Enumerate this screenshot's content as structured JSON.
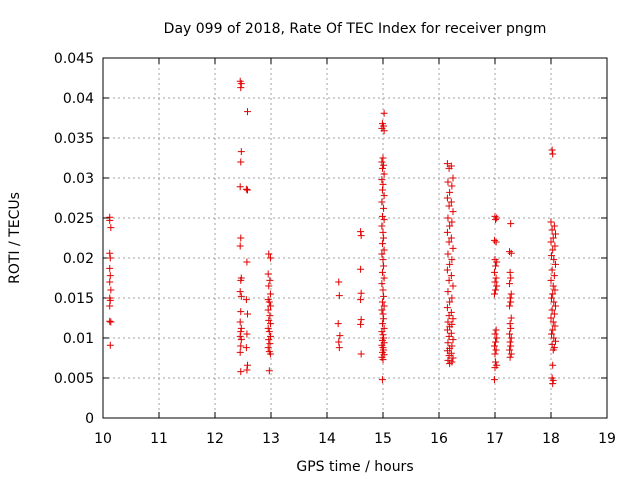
{
  "chart_data": {
    "type": "scatter",
    "title": "Day 099 of 2018, Rate Of TEC Index for receiver pngm",
    "xlabel": "GPS time / hours",
    "ylabel": "ROTI / TECUs",
    "xlim": [
      10,
      19
    ],
    "ylim": [
      0,
      0.045
    ],
    "grid": true,
    "legend": "none",
    "marker": "+",
    "color": "#e00000",
    "xticks": [
      10,
      11,
      12,
      13,
      14,
      15,
      16,
      17,
      18,
      19
    ],
    "yticks": [
      0,
      0.005,
      0.01,
      0.015,
      0.02,
      0.025,
      0.03,
      0.035,
      0.04,
      0.045
    ],
    "xtick_labels": [
      "10",
      "11",
      "12",
      "13",
      "14",
      "15",
      "16",
      "17",
      "18",
      "19"
    ],
    "ytick_labels": [
      "0",
      "0.005",
      "0.01",
      "0.015",
      "0.02",
      "0.025",
      "0.03",
      "0.035",
      "0.04",
      "0.045"
    ],
    "series": [
      {
        "name": "ROTI",
        "points": [
          [
            10.12,
            0.0251
          ],
          [
            10.12,
            0.0247
          ],
          [
            10.14,
            0.0238
          ],
          [
            10.12,
            0.0206
          ],
          [
            10.13,
            0.02
          ],
          [
            10.12,
            0.0187
          ],
          [
            10.13,
            0.0178
          ],
          [
            10.12,
            0.017
          ],
          [
            10.14,
            0.016
          ],
          [
            10.12,
            0.015
          ],
          [
            10.13,
            0.0147
          ],
          [
            10.12,
            0.014
          ],
          [
            10.12,
            0.0121
          ],
          [
            10.14,
            0.012
          ],
          [
            10.13,
            0.0091
          ],
          [
            12.45,
            0.0421
          ],
          [
            12.47,
            0.0418
          ],
          [
            12.46,
            0.0413
          ],
          [
            12.58,
            0.0383
          ],
          [
            12.47,
            0.0333
          ],
          [
            12.46,
            0.032
          ],
          [
            12.45,
            0.0289
          ],
          [
            12.56,
            0.0286
          ],
          [
            12.58,
            0.0285
          ],
          [
            12.46,
            0.0225
          ],
          [
            12.45,
            0.0215
          ],
          [
            12.57,
            0.0195
          ],
          [
            12.47,
            0.0175
          ],
          [
            12.46,
            0.0172
          ],
          [
            12.45,
            0.0158
          ],
          [
            12.47,
            0.0152
          ],
          [
            12.56,
            0.0148
          ],
          [
            12.46,
            0.0133
          ],
          [
            12.58,
            0.013
          ],
          [
            12.45,
            0.012
          ],
          [
            12.47,
            0.0112
          ],
          [
            12.46,
            0.0108
          ],
          [
            12.57,
            0.0105
          ],
          [
            12.45,
            0.0102
          ],
          [
            12.47,
            0.0098
          ],
          [
            12.46,
            0.009
          ],
          [
            12.56,
            0.0088
          ],
          [
            12.45,
            0.0082
          ],
          [
            12.58,
            0.0066
          ],
          [
            12.57,
            0.006
          ],
          [
            12.46,
            0.0058
          ],
          [
            12.96,
            0.0205
          ],
          [
            12.99,
            0.02
          ],
          [
            12.95,
            0.018
          ],
          [
            12.98,
            0.0172
          ],
          [
            12.96,
            0.0165
          ],
          [
            12.99,
            0.0155
          ],
          [
            12.95,
            0.0148
          ],
          [
            12.97,
            0.0145
          ],
          [
            12.99,
            0.014
          ],
          [
            12.95,
            0.0135
          ],
          [
            12.98,
            0.0128
          ],
          [
            12.96,
            0.0122
          ],
          [
            12.99,
            0.0118
          ],
          [
            12.95,
            0.0112
          ],
          [
            12.97,
            0.0108
          ],
          [
            12.99,
            0.0102
          ],
          [
            12.96,
            0.0098
          ],
          [
            12.98,
            0.0093
          ],
          [
            12.95,
            0.0088
          ],
          [
            12.97,
            0.0083
          ],
          [
            12.99,
            0.008
          ],
          [
            12.97,
            0.0059
          ],
          [
            14.21,
            0.017
          ],
          [
            14.22,
            0.0153
          ],
          [
            14.2,
            0.0118
          ],
          [
            14.23,
            0.0103
          ],
          [
            14.21,
            0.0095
          ],
          [
            14.22,
            0.0088
          ],
          [
            14.6,
            0.0233
          ],
          [
            14.61,
            0.0228
          ],
          [
            14.6,
            0.0186
          ],
          [
            14.61,
            0.0156
          ],
          [
            14.6,
            0.0148
          ],
          [
            14.61,
            0.0123
          ],
          [
            14.6,
            0.0117
          ],
          [
            14.61,
            0.008
          ],
          [
            15.02,
            0.0381
          ],
          [
            14.99,
            0.0368
          ],
          [
            15.01,
            0.0365
          ],
          [
            14.98,
            0.0362
          ],
          [
            15.02,
            0.0359
          ],
          [
            15.0,
            0.0325
          ],
          [
            14.98,
            0.032
          ],
          [
            15.01,
            0.0316
          ],
          [
            14.99,
            0.0312
          ],
          [
            15.02,
            0.0305
          ],
          [
            14.98,
            0.0298
          ],
          [
            15.0,
            0.0292
          ],
          [
            14.99,
            0.0285
          ],
          [
            15.02,
            0.0278
          ],
          [
            14.98,
            0.027
          ],
          [
            15.01,
            0.0262
          ],
          [
            14.99,
            0.0252
          ],
          [
            15.02,
            0.0248
          ],
          [
            14.98,
            0.024
          ],
          [
            15.0,
            0.0232
          ],
          [
            15.01,
            0.0225
          ],
          [
            14.99,
            0.0218
          ],
          [
            15.02,
            0.021
          ],
          [
            14.98,
            0.0205
          ],
          [
            15.0,
            0.0198
          ],
          [
            15.01,
            0.019
          ],
          [
            14.99,
            0.0182
          ],
          [
            15.02,
            0.0175
          ],
          [
            14.98,
            0.0168
          ],
          [
            15.0,
            0.016
          ],
          [
            15.01,
            0.0152
          ],
          [
            14.99,
            0.0145
          ],
          [
            15.02,
            0.014
          ],
          [
            14.98,
            0.0135
          ],
          [
            15.0,
            0.013
          ],
          [
            15.01,
            0.0124
          ],
          [
            14.99,
            0.0118
          ],
          [
            15.02,
            0.0112
          ],
          [
            14.98,
            0.0108
          ],
          [
            15.0,
            0.0104
          ],
          [
            15.01,
            0.01
          ],
          [
            14.99,
            0.0097
          ],
          [
            15.02,
            0.0094
          ],
          [
            14.98,
            0.0091
          ],
          [
            15.0,
            0.0088
          ],
          [
            15.01,
            0.0085
          ],
          [
            14.99,
            0.0082
          ],
          [
            15.02,
            0.0079
          ],
          [
            14.98,
            0.0076
          ],
          [
            15.0,
            0.0073
          ],
          [
            14.99,
            0.0048
          ],
          [
            16.15,
            0.0318
          ],
          [
            16.22,
            0.0315
          ],
          [
            16.18,
            0.0312
          ],
          [
            16.25,
            0.03
          ],
          [
            16.16,
            0.0295
          ],
          [
            16.23,
            0.029
          ],
          [
            16.19,
            0.0282
          ],
          [
            16.15,
            0.0275
          ],
          [
            16.22,
            0.027
          ],
          [
            16.18,
            0.0265
          ],
          [
            16.25,
            0.0258
          ],
          [
            16.16,
            0.025
          ],
          [
            16.23,
            0.0245
          ],
          [
            16.19,
            0.024
          ],
          [
            16.15,
            0.0232
          ],
          [
            16.22,
            0.0225
          ],
          [
            16.18,
            0.022
          ],
          [
            16.25,
            0.0212
          ],
          [
            16.16,
            0.0205
          ],
          [
            16.23,
            0.0198
          ],
          [
            16.19,
            0.0192
          ],
          [
            16.15,
            0.0185
          ],
          [
            16.22,
            0.0178
          ],
          [
            16.18,
            0.0172
          ],
          [
            16.25,
            0.0165
          ],
          [
            16.16,
            0.0158
          ],
          [
            16.23,
            0.015
          ],
          [
            16.19,
            0.0145
          ],
          [
            16.15,
            0.0138
          ],
          [
            16.22,
            0.0132
          ],
          [
            16.18,
            0.0128
          ],
          [
            16.25,
            0.0124
          ],
          [
            16.16,
            0.012
          ],
          [
            16.23,
            0.0117
          ],
          [
            16.19,
            0.0114
          ],
          [
            16.15,
            0.011
          ],
          [
            16.22,
            0.0106
          ],
          [
            16.18,
            0.0102
          ],
          [
            16.25,
            0.0098
          ],
          [
            16.16,
            0.0094
          ],
          [
            16.23,
            0.009
          ],
          [
            16.19,
            0.0087
          ],
          [
            16.15,
            0.0084
          ],
          [
            16.22,
            0.0081
          ],
          [
            16.18,
            0.0078
          ],
          [
            16.25,
            0.0075
          ],
          [
            16.16,
            0.0072
          ],
          [
            16.23,
            0.007
          ],
          [
            16.19,
            0.0068
          ],
          [
            17.0,
            0.0252
          ],
          [
            17.03,
            0.025
          ],
          [
            17.01,
            0.0248
          ],
          [
            16.99,
            0.0222
          ],
          [
            17.02,
            0.022
          ],
          [
            17.0,
            0.0198
          ],
          [
            17.03,
            0.0195
          ],
          [
            17.01,
            0.019
          ],
          [
            16.99,
            0.0182
          ],
          [
            17.02,
            0.0175
          ],
          [
            17.0,
            0.017
          ],
          [
            17.03,
            0.0165
          ],
          [
            17.01,
            0.016
          ],
          [
            16.99,
            0.0155
          ],
          [
            17.02,
            0.011
          ],
          [
            17.0,
            0.0105
          ],
          [
            17.03,
            0.01
          ],
          [
            17.01,
            0.0095
          ],
          [
            16.99,
            0.009
          ],
          [
            17.02,
            0.0085
          ],
          [
            17.0,
            0.008
          ],
          [
            17.01,
            0.007
          ],
          [
            17.03,
            0.0066
          ],
          [
            17.0,
            0.0063
          ],
          [
            16.99,
            0.0048
          ],
          [
            17.28,
            0.0243
          ],
          [
            17.26,
            0.0208
          ],
          [
            17.29,
            0.0206
          ],
          [
            17.27,
            0.0182
          ],
          [
            17.28,
            0.0175
          ],
          [
            17.26,
            0.0168
          ],
          [
            17.29,
            0.0155
          ],
          [
            17.27,
            0.015
          ],
          [
            17.28,
            0.0145
          ],
          [
            17.26,
            0.014
          ],
          [
            17.29,
            0.0125
          ],
          [
            17.27,
            0.0118
          ],
          [
            17.28,
            0.0112
          ],
          [
            17.26,
            0.0105
          ],
          [
            17.29,
            0.01
          ],
          [
            17.27,
            0.0095
          ],
          [
            17.28,
            0.009
          ],
          [
            17.26,
            0.0085
          ],
          [
            17.29,
            0.008
          ],
          [
            17.27,
            0.0076
          ],
          [
            18.02,
            0.0335
          ],
          [
            18.03,
            0.033
          ],
          [
            18.0,
            0.0245
          ],
          [
            18.06,
            0.024
          ],
          [
            18.02,
            0.0235
          ],
          [
            18.08,
            0.023
          ],
          [
            18.04,
            0.0225
          ],
          [
            18.0,
            0.022
          ],
          [
            18.07,
            0.0215
          ],
          [
            18.03,
            0.021
          ],
          [
            18.01,
            0.0203
          ],
          [
            18.05,
            0.0198
          ],
          [
            18.08,
            0.0192
          ],
          [
            18.02,
            0.0185
          ],
          [
            18.06,
            0.0178
          ],
          [
            18.0,
            0.0172
          ],
          [
            18.04,
            0.0165
          ],
          [
            18.07,
            0.016
          ],
          [
            18.03,
            0.0155
          ],
          [
            18.01,
            0.015
          ],
          [
            18.05,
            0.0145
          ],
          [
            18.08,
            0.014
          ],
          [
            18.02,
            0.0135
          ],
          [
            18.06,
            0.013
          ],
          [
            18.0,
            0.0125
          ],
          [
            18.04,
            0.012
          ],
          [
            18.07,
            0.0115
          ],
          [
            18.03,
            0.011
          ],
          [
            18.01,
            0.0105
          ],
          [
            18.05,
            0.01
          ],
          [
            18.08,
            0.0096
          ],
          [
            18.02,
            0.0092
          ],
          [
            18.06,
            0.0088
          ],
          [
            18.04,
            0.0085
          ],
          [
            18.03,
            0.0066
          ],
          [
            18.02,
            0.005
          ],
          [
            18.04,
            0.0047
          ],
          [
            18.03,
            0.0043
          ]
        ]
      }
    ]
  }
}
